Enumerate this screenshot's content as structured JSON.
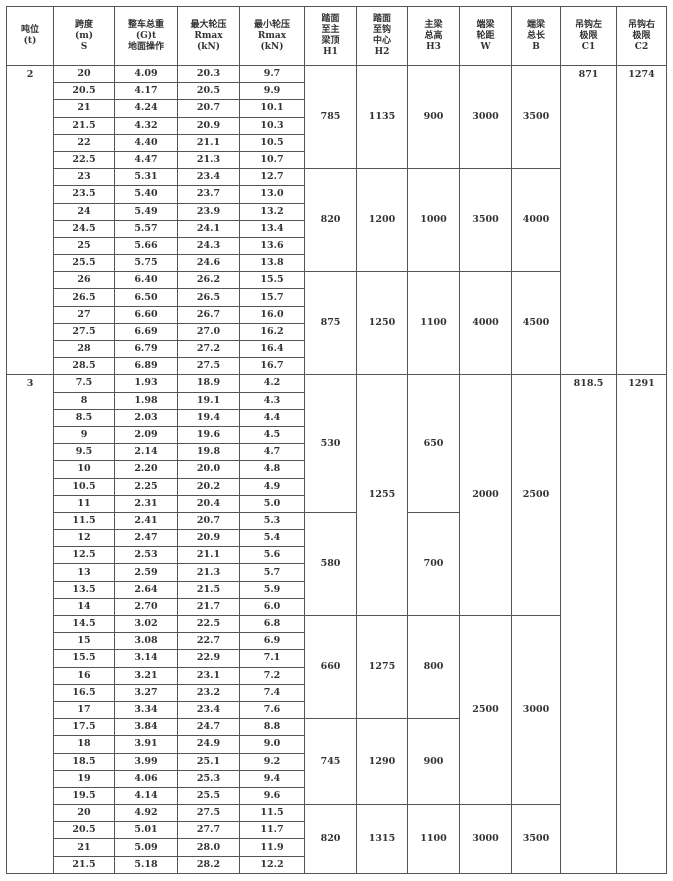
{
  "headers": [
    [
      "吨位",
      "(t)"
    ],
    [
      "跨度",
      "(m)",
      "S"
    ],
    [
      "整车总重",
      "(G)t",
      "地面操作"
    ],
    [
      "最大轮压",
      "Rmax",
      "(kN)"
    ],
    [
      "最小轮压",
      "Rmax",
      "(kN)"
    ],
    [
      "踏面",
      "至主",
      "梁顶",
      "H1"
    ],
    [
      "踏面",
      "至钩",
      "中心",
      "H2"
    ],
    [
      "主梁",
      "总高",
      "H3"
    ],
    [
      "端梁",
      "轮距",
      "W"
    ],
    [
      "端梁",
      "总长",
      "B"
    ],
    [
      "吊钩左",
      "极限",
      "C1"
    ],
    [
      "吊钩右",
      "极限",
      "C2"
    ]
  ],
  "sections": [
    {
      "tonnage": "2",
      "C1": "871",
      "C2": "1274",
      "rows": [
        [
          "20",
          "4.09",
          "20.3",
          "9.7"
        ],
        [
          "20.5",
          "4.17",
          "20.5",
          "9.9"
        ],
        [
          "21",
          "4.24",
          "20.7",
          "10.1"
        ],
        [
          "21.5",
          "4.32",
          "20.9",
          "10.3"
        ],
        [
          "22",
          "4.40",
          "21.1",
          "10.5"
        ],
        [
          "22.5",
          "4.47",
          "21.3",
          "10.7"
        ],
        [
          "23",
          "5.31",
          "23.4",
          "12.7"
        ],
        [
          "23.5",
          "5.40",
          "23.7",
          "13.0"
        ],
        [
          "24",
          "5.49",
          "23.9",
          "13.2"
        ],
        [
          "24.5",
          "5.57",
          "24.1",
          "13.4"
        ],
        [
          "25",
          "5.66",
          "24.3",
          "13.6"
        ],
        [
          "25.5",
          "5.75",
          "24.6",
          "13.8"
        ],
        [
          "26",
          "6.40",
          "26.2",
          "15.5"
        ],
        [
          "26.5",
          "6.50",
          "26.5",
          "15.7"
        ],
        [
          "27",
          "6.60",
          "26.7",
          "16.0"
        ],
        [
          "27.5",
          "6.69",
          "27.0",
          "16.2"
        ],
        [
          "28",
          "6.79",
          "27.2",
          "16.4"
        ],
        [
          "28.5",
          "6.89",
          "27.5",
          "16.7"
        ]
      ],
      "H1": [
        {
          "value": "785",
          "span": 6
        },
        {
          "value": "820",
          "span": 6
        },
        {
          "value": "875",
          "span": 6
        }
      ],
      "H2": [
        {
          "value": "1135",
          "span": 6
        },
        {
          "value": "1200",
          "span": 6
        },
        {
          "value": "1250",
          "span": 6
        }
      ],
      "H3": [
        {
          "value": "900",
          "span": 6
        },
        {
          "value": "1000",
          "span": 6
        },
        {
          "value": "1100",
          "span": 6
        }
      ],
      "W": [
        {
          "value": "3000",
          "span": 6
        },
        {
          "value": "3500",
          "span": 6
        },
        {
          "value": "4000",
          "span": 6
        }
      ],
      "B": [
        {
          "value": "3500",
          "span": 6
        },
        {
          "value": "4000",
          "span": 6
        },
        {
          "value": "4500",
          "span": 6
        }
      ]
    },
    {
      "tonnage": "3",
      "C1": "818.5",
      "C2": "1291",
      "rows": [
        [
          "7.5",
          "1.93",
          "18.9",
          "4.2"
        ],
        [
          "8",
          "1.98",
          "19.1",
          "4.3"
        ],
        [
          "8.5",
          "2.03",
          "19.4",
          "4.4"
        ],
        [
          "9",
          "2.09",
          "19.6",
          "4.5"
        ],
        [
          "9.5",
          "2.14",
          "19.8",
          "4.7"
        ],
        [
          "10",
          "2.20",
          "20.0",
          "4.8"
        ],
        [
          "10.5",
          "2.25",
          "20.2",
          "4.9"
        ],
        [
          "11",
          "2.31",
          "20.4",
          "5.0"
        ],
        [
          "11.5",
          "2.41",
          "20.7",
          "5.3"
        ],
        [
          "12",
          "2.47",
          "20.9",
          "5.4"
        ],
        [
          "12.5",
          "2.53",
          "21.1",
          "5.6"
        ],
        [
          "13",
          "2.59",
          "21.3",
          "5.7"
        ],
        [
          "13.5",
          "2.64",
          "21.5",
          "5.9"
        ],
        [
          "14",
          "2.70",
          "21.7",
          "6.0"
        ],
        [
          "14.5",
          "3.02",
          "22.5",
          "6.8"
        ],
        [
          "15",
          "3.08",
          "22.7",
          "6.9"
        ],
        [
          "15.5",
          "3.14",
          "22.9",
          "7.1"
        ],
        [
          "16",
          "3.21",
          "23.1",
          "7.2"
        ],
        [
          "16.5",
          "3.27",
          "23.2",
          "7.4"
        ],
        [
          "17",
          "3.34",
          "23.4",
          "7.6"
        ],
        [
          "17.5",
          "3.84",
          "24.7",
          "8.8"
        ],
        [
          "18",
          "3.91",
          "24.9",
          "9.0"
        ],
        [
          "18.5",
          "3.99",
          "25.1",
          "9.2"
        ],
        [
          "19",
          "4.06",
          "25.3",
          "9.4"
        ],
        [
          "19.5",
          "4.14",
          "25.5",
          "9.6"
        ],
        [
          "20",
          "4.92",
          "27.5",
          "11.5"
        ],
        [
          "20.5",
          "5.01",
          "27.7",
          "11.7"
        ],
        [
          "21",
          "5.09",
          "28.0",
          "11.9"
        ],
        [
          "21.5",
          "5.18",
          "28.2",
          "12.2"
        ]
      ],
      "H1": [
        {
          "value": "530",
          "span": 8
        },
        {
          "value": "580",
          "span": 6
        },
        {
          "value": "660",
          "span": 6
        },
        {
          "value": "745",
          "span": 5
        },
        {
          "value": "820",
          "span": 4
        }
      ],
      "H2": [
        {
          "value": "1255",
          "span": 14
        },
        {
          "value": "1275",
          "span": 6
        },
        {
          "value": "1290",
          "span": 5
        },
        {
          "value": "1315",
          "span": 4
        }
      ],
      "H3": [
        {
          "value": "650",
          "span": 8
        },
        {
          "value": "700",
          "span": 6
        },
        {
          "value": "800",
          "span": 6
        },
        {
          "value": "900",
          "span": 5
        },
        {
          "value": "1100",
          "span": 4
        }
      ],
      "W": [
        {
          "value": "2000",
          "span": 14
        },
        {
          "value": "2500",
          "span": 11
        },
        {
          "value": "3000",
          "span": 4
        }
      ],
      "B": [
        {
          "value": "2500",
          "span": 14
        },
        {
          "value": "3000",
          "span": 11
        },
        {
          "value": "3500",
          "span": 4
        }
      ]
    }
  ]
}
